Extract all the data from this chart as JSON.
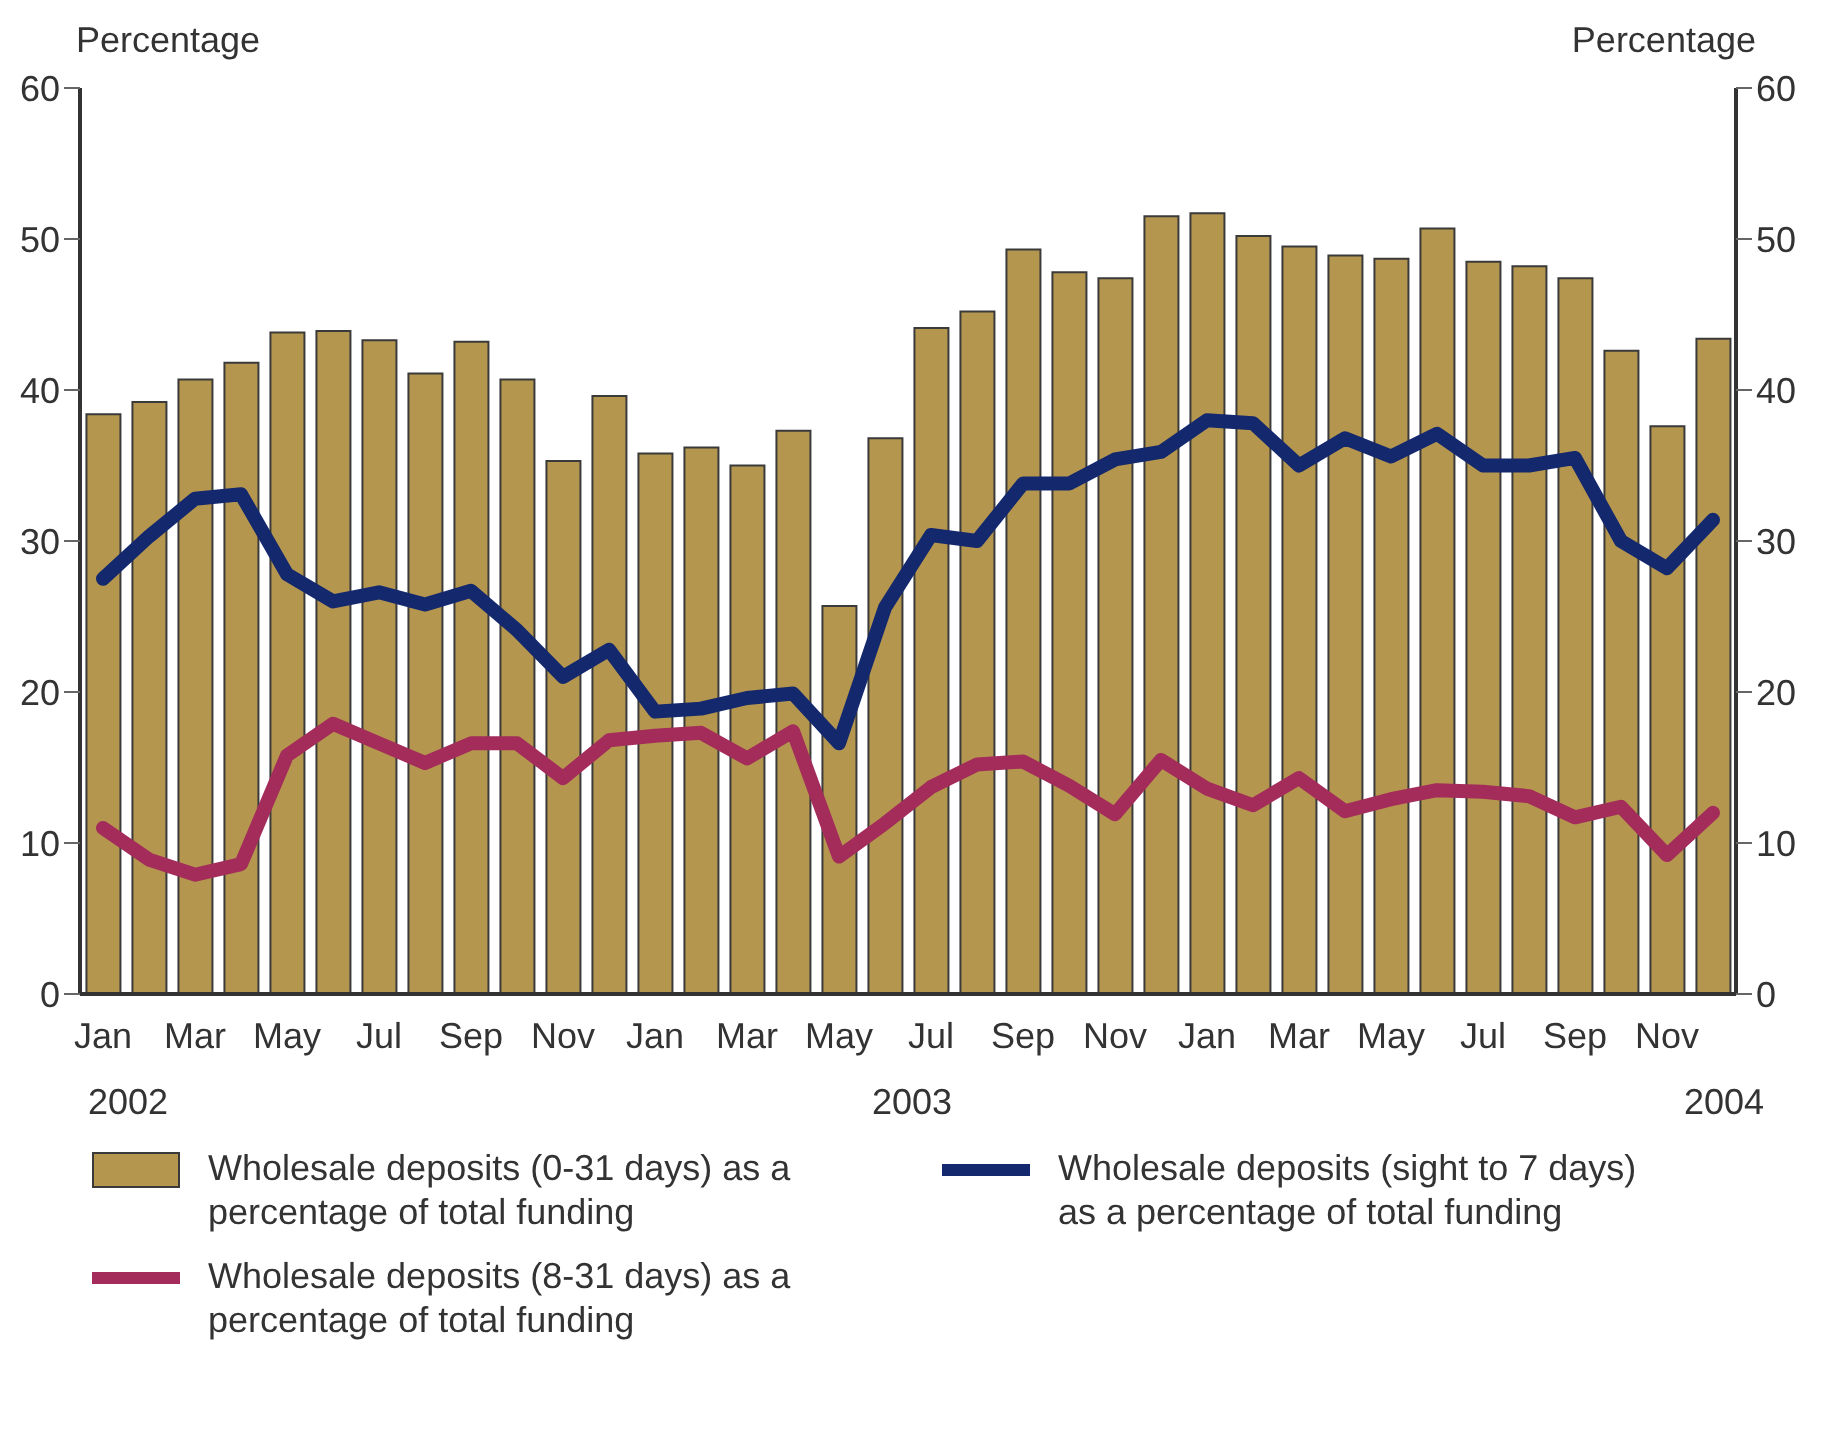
{
  "chart_data": {
    "type": "bar",
    "ylabel": "Percentage",
    "y2label": "Percentage",
    "categories": [
      "Jan",
      null,
      "Mar",
      null,
      "May",
      null,
      "Jul",
      null,
      "Sep",
      null,
      "Nov",
      null,
      "Jan",
      null,
      "Mar",
      null,
      "May",
      null,
      "Jul",
      null,
      "Sep",
      null,
      "Nov",
      null,
      "Jan",
      null,
      "Mar",
      null,
      "May",
      null,
      "Jul",
      null,
      "Sep",
      null,
      "Nov",
      null
    ],
    "series": [
      {
        "name": "Wholesale deposits (0-31 days) as a percentage of total funding",
        "color": "#b5964f",
        "values": [
          38.4,
          39.2,
          40.7,
          41.8,
          43.8,
          43.9,
          43.3,
          41.1,
          43.2,
          40.7,
          35.3,
          39.6,
          35.8,
          36.2,
          35.0,
          37.3,
          25.7,
          36.8,
          44.1,
          45.2,
          49.3,
          47.8,
          47.4,
          51.5,
          51.7,
          50.2,
          49.5,
          48.9,
          48.7,
          50.7,
          48.5,
          48.2,
          47.4,
          42.6,
          37.6,
          43.4
        ]
      },
      {
        "name": "Wholesale deposits (sight to 7 days) as a percentage of total funding",
        "type": "line",
        "color": "#14286e",
        "values": [
          27.5,
          30.3,
          32.8,
          33.1,
          27.8,
          26.0,
          26.6,
          25.8,
          26.7,
          24.1,
          21.0,
          22.8,
          18.7,
          18.9,
          19.6,
          19.9,
          16.6,
          25.6,
          30.4,
          30.0,
          33.8,
          33.8,
          35.4,
          35.9,
          38.0,
          37.8,
          35.0,
          36.8,
          35.6,
          37.1,
          35.0,
          35.0,
          35.5,
          30.0,
          28.2,
          31.4
        ]
      },
      {
        "name": "Wholesale deposits (8-31 days) as a percentage of total funding",
        "type": "line",
        "color": "#a32c5a",
        "values": [
          11.0,
          8.9,
          7.9,
          8.6,
          15.8,
          17.9,
          16.6,
          15.3,
          16.6,
          16.6,
          14.3,
          16.8,
          17.1,
          17.3,
          15.6,
          17.4,
          9.1,
          11.3,
          13.7,
          15.2,
          15.4,
          13.8,
          11.9,
          15.5,
          13.6,
          12.5,
          14.3,
          12.1,
          12.9,
          13.5,
          13.4,
          13.1,
          11.7,
          12.4,
          9.2,
          12.0
        ]
      }
    ],
    "ylim": [
      0,
      60
    ],
    "yticks": [
      0,
      10,
      20,
      30,
      40,
      50,
      60
    ],
    "y2lim": [
      0,
      60
    ],
    "y2ticks": [
      0,
      10,
      20,
      30,
      40,
      50,
      60
    ],
    "annotations": [
      "2002",
      "2003",
      "2004"
    ],
    "grid": false,
    "legend": "bottom",
    "marker": "none",
    "line_style": "solid"
  }
}
